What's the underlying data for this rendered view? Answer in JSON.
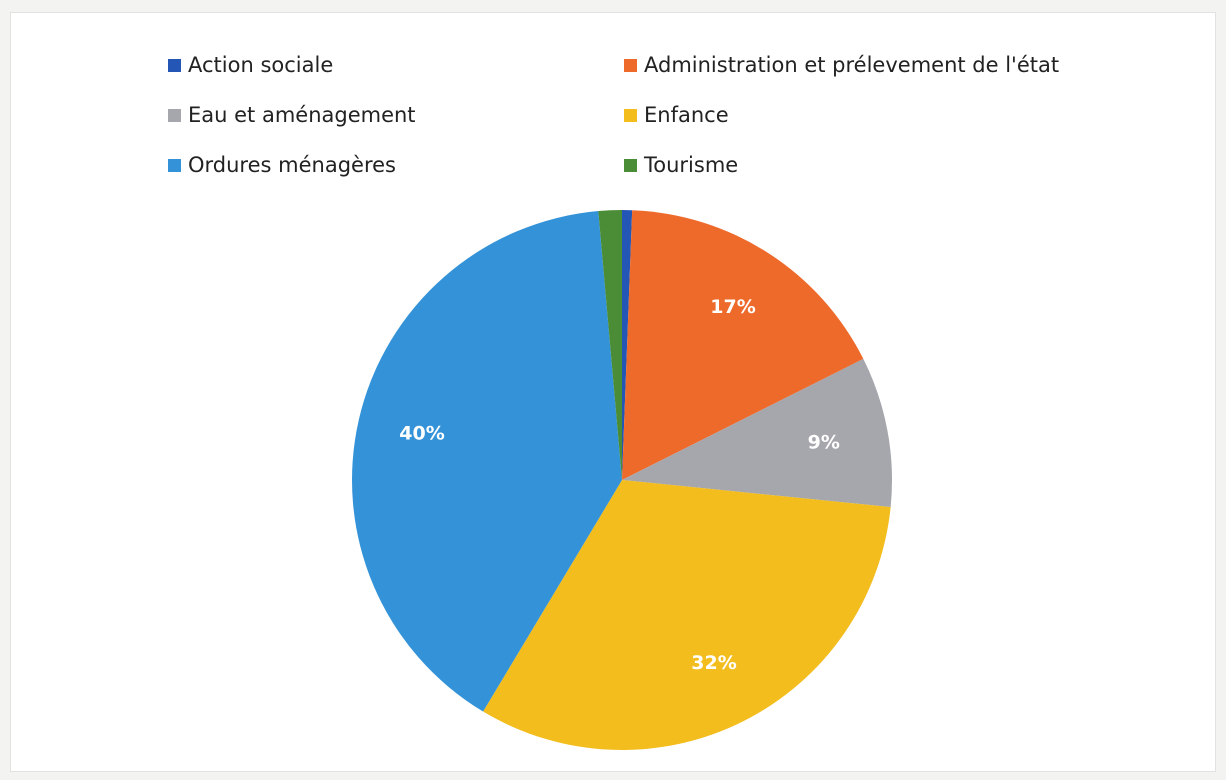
{
  "chart_data": {
    "type": "pie",
    "title": "",
    "legend_position": "top",
    "series": [
      {
        "values": [
          0.6,
          17,
          9,
          32,
          40,
          1.4
        ],
        "categories": [
          "Action sociale",
          "Administration et prélevement de l'état",
          "Eau et aménagement",
          "Enfance",
          "Ordures ménagères",
          "Tourisme"
        ]
      }
    ],
    "slices": [
      {
        "label": "Action sociale",
        "value": 0.6,
        "color": "#2457b5",
        "display": ""
      },
      {
        "label": "Administration et prélevement de l'état",
        "value": 17,
        "color": "#ee6a2a",
        "display": "17%"
      },
      {
        "label": "Eau et aménagement",
        "value": 9,
        "color": "#a6a6ad",
        "display": "9%"
      },
      {
        "label": "Enfance",
        "value": 32,
        "color": "#f2bd1d",
        "display": "32%"
      },
      {
        "label": "Ordures ménagères",
        "value": 40,
        "color": "#3493d8",
        "display": "40%"
      },
      {
        "label": "Tourisme",
        "value": 1.4,
        "color": "#4b8c36",
        "display": ""
      }
    ]
  }
}
